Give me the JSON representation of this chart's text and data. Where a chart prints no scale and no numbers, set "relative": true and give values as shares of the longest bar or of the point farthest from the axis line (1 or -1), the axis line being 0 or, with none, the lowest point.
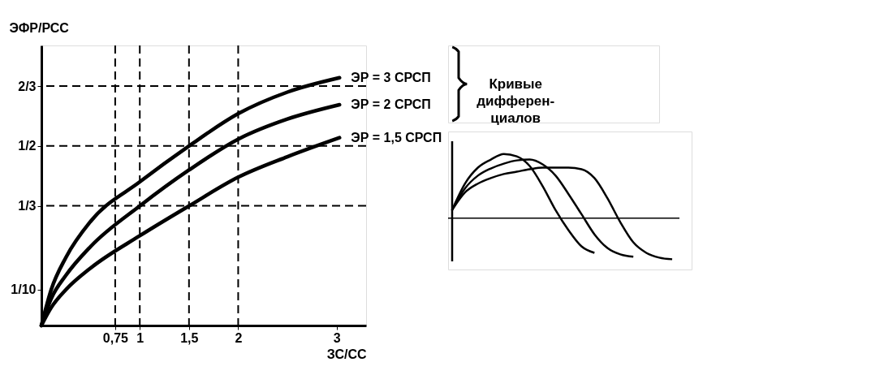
{
  "chart_data": [
    {
      "type": "line",
      "xlabel": "ЗС/СС",
      "ylabel": "ЭФР/РСС",
      "xlim": [
        0,
        3.3
      ],
      "ylim": [
        0,
        0.78
      ],
      "xticks": [
        {
          "value": 0.75,
          "label": "0,75"
        },
        {
          "value": 1,
          "label": "1"
        },
        {
          "value": 1.5,
          "label": "1,5"
        },
        {
          "value": 2,
          "label": "2"
        },
        {
          "value": 3,
          "label": "3"
        }
      ],
      "yticks": [
        {
          "value": 0.1,
          "label": "1/10"
        },
        {
          "value": 0.3333,
          "label": "1/3"
        },
        {
          "value": 0.5,
          "label": "1/2"
        },
        {
          "value": 0.6667,
          "label": "2/3"
        }
      ],
      "grid": false,
      "series": [
        {
          "name": "ЭР = 3 СРСП",
          "color": "#000000",
          "x": [
            0,
            0.1,
            0.25,
            0.5,
            1.0,
            1.5,
            2.0,
            2.5,
            3.03
          ],
          "values": [
            0,
            0.1,
            0.19,
            0.29,
            0.4,
            0.5,
            0.59,
            0.65,
            0.69
          ]
        },
        {
          "name": "ЭР = 2 СРСП",
          "color": "#000000",
          "x": [
            0,
            0.1,
            0.25,
            0.5,
            1.0,
            1.5,
            2.0,
            2.5,
            3.03
          ],
          "values": [
            0,
            0.075,
            0.14,
            0.22,
            0.333,
            0.433,
            0.519,
            0.575,
            0.615
          ]
        },
        {
          "name": "ЭР = 1,5 СРСП",
          "color": "#000000",
          "x": [
            0,
            0.1,
            0.25,
            0.5,
            1.0,
            1.5,
            2.0,
            2.5,
            3.03
          ],
          "values": [
            0,
            0.05,
            0.1,
            0.16,
            0.25,
            0.333,
            0.413,
            0.47,
            0.523
          ]
        }
      ],
      "ref_lines": [
        {
          "axis": "x",
          "value": 0.75,
          "line_style": "dashed",
          "color": "#000000"
        },
        {
          "axis": "x",
          "value": 1,
          "line_style": "dashed",
          "color": "#000000"
        },
        {
          "axis": "x",
          "value": 1.5,
          "line_style": "dashed",
          "color": "#000000"
        },
        {
          "axis": "x",
          "value": 2,
          "line_style": "dashed",
          "color": "#000000"
        },
        {
          "axis": "y",
          "value": 0.3333,
          "line_style": "dashed",
          "color": "#000000"
        },
        {
          "axis": "y",
          "value": 0.5,
          "line_style": "dashed",
          "color": "#000000"
        },
        {
          "axis": "y",
          "value": 0.6667,
          "line_style": "dashed",
          "color": "#000000"
        }
      ],
      "annotations": [
        "Кривые\nдифферен-\nциалов"
      ]
    },
    {
      "type": "line",
      "relative": true,
      "categories": [
        null,
        null,
        null,
        null,
        null,
        null,
        null,
        null,
        null,
        null,
        null,
        null,
        null,
        null,
        null,
        null,
        null,
        null
      ],
      "series": [
        {
          "color": "#000000",
          "values": [
            0.125,
            0.538,
            0.788,
            0.913,
            1.0,
            0.963,
            0.813,
            0.5,
            0.125,
            -0.188,
            -0.438,
            -0.538,
            null,
            null,
            null,
            null,
            null,
            null
          ]
        },
        {
          "color": "#000000",
          "values": [
            0.125,
            0.463,
            0.663,
            0.775,
            0.85,
            0.9,
            0.913,
            0.838,
            0.663,
            0.375,
            0.063,
            -0.25,
            -0.463,
            -0.563,
            -0.6,
            null,
            null,
            null
          ]
        },
        {
          "color": "#000000",
          "values": [
            0.125,
            0.4,
            0.538,
            0.625,
            0.688,
            0.725,
            0.763,
            0.788,
            0.788,
            0.788,
            0.763,
            0.625,
            0.313,
            -0.063,
            -0.375,
            -0.538,
            -0.613,
            -0.638
          ]
        }
      ]
    }
  ]
}
